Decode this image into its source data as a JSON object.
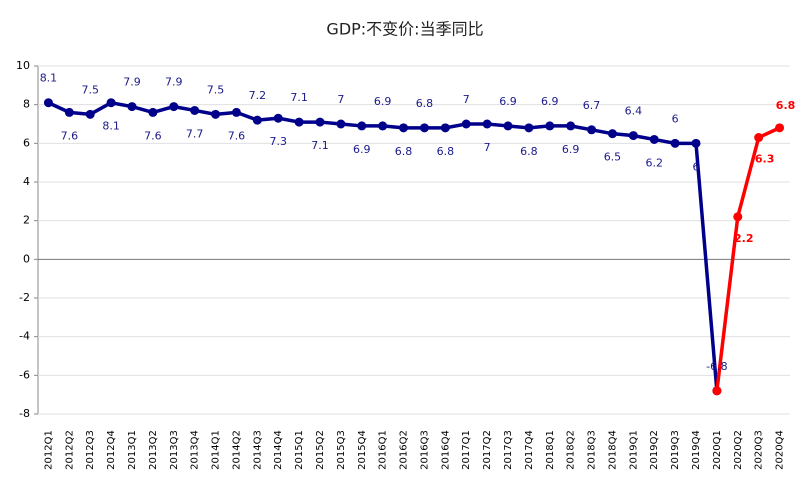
{
  "chart_data": {
    "type": "line",
    "title": "GDP:不变价:当季同比",
    "categories": [
      "2012Q1",
      "2012Q2",
      "2012Q3",
      "2012Q4",
      "2013Q1",
      "2013Q2",
      "2013Q3",
      "2013Q4",
      "2014Q1",
      "2014Q2",
      "2014Q3",
      "2014Q4",
      "2015Q1",
      "2015Q2",
      "2015Q3",
      "2015Q4",
      "2016Q1",
      "2016Q2",
      "2016Q3",
      "2016Q4",
      "2017Q1",
      "2017Q2",
      "2017Q3",
      "2017Q4",
      "2018Q1",
      "2018Q2",
      "2018Q3",
      "2018Q4",
      "2019Q1",
      "2019Q2",
      "2019Q3",
      "2019Q4",
      "2020Q1",
      "2020Q2",
      "2020Q3",
      "2020Q4"
    ],
    "series": [
      {
        "color": "#00008b",
        "values": [
          8.1,
          7.6,
          7.5,
          8.1,
          7.9,
          7.6,
          7.9,
          7.7,
          7.5,
          7.6,
          7.2,
          7.3,
          7.1,
          7.1,
          7,
          6.9,
          6.9,
          6.8,
          6.8,
          6.8,
          7,
          7,
          6.9,
          6.8,
          6.9,
          6.9,
          6.7,
          6.5,
          6.4,
          6.2,
          6,
          6,
          -6.8,
          null,
          null,
          null
        ]
      },
      {
        "color": "#ff0000",
        "values": [
          null,
          null,
          null,
          null,
          null,
          null,
          null,
          null,
          null,
          null,
          null,
          null,
          null,
          null,
          null,
          null,
          null,
          null,
          null,
          null,
          null,
          null,
          null,
          null,
          null,
          null,
          null,
          null,
          null,
          null,
          null,
          null,
          -6.8,
          2.2,
          6.3,
          6.8
        ]
      }
    ],
    "ylim": [
      -8,
      10
    ],
    "yticks": [
      -8,
      -6,
      -4,
      -2,
      0,
      2,
      4,
      6,
      8,
      10
    ],
    "grid": true
  }
}
